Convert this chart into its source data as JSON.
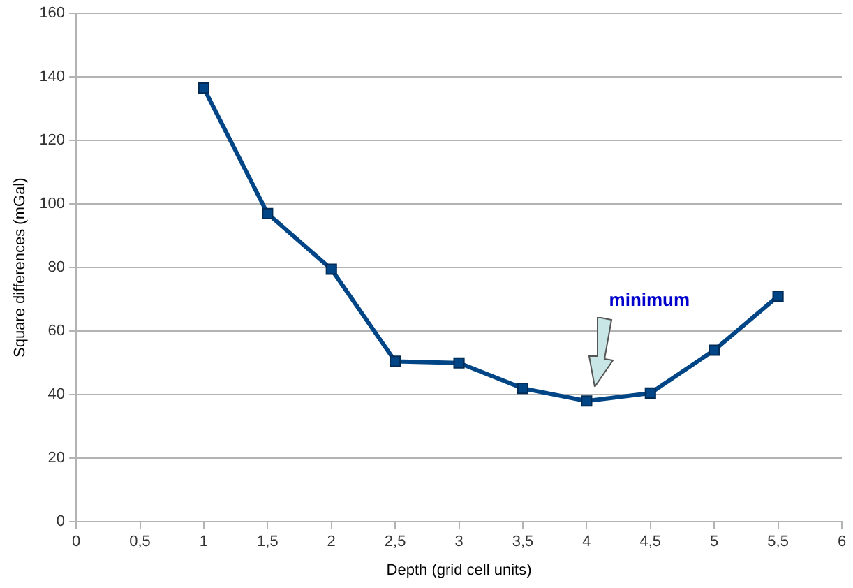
{
  "chart_data": {
    "type": "line",
    "xlabel": "Depth (grid cell units)",
    "ylabel": "Square differences (mGal)",
    "x": [
      1,
      1.5,
      2,
      2.5,
      3,
      3.5,
      4,
      4.5,
      5,
      5.5
    ],
    "series": [
      {
        "color": "#004586",
        "values": [
          136.5,
          97,
          79.5,
          50.5,
          50,
          42,
          38,
          40.5,
          54,
          71
        ]
      }
    ],
    "xlim": [
      0,
      6
    ],
    "xticks": [
      0,
      {
        "value": 0.5,
        "label": "0,5"
      },
      1,
      {
        "value": 1.5,
        "label": "1,5"
      },
      2,
      {
        "value": 2.5,
        "label": "2,5"
      },
      3,
      {
        "value": 3.5,
        "label": "3,5"
      },
      4,
      {
        "value": 4.5,
        "label": "4,5"
      },
      5,
      {
        "value": 5.5,
        "label": "5,5"
      },
      6
    ],
    "ylim": [
      0,
      160
    ],
    "yticks": [
      0,
      20,
      40,
      60,
      80,
      100,
      120,
      140,
      160
    ],
    "grid": "y",
    "legend": false,
    "marker": "square",
    "line_style": "solid",
    "annotations": [
      "minimum"
    ]
  }
}
